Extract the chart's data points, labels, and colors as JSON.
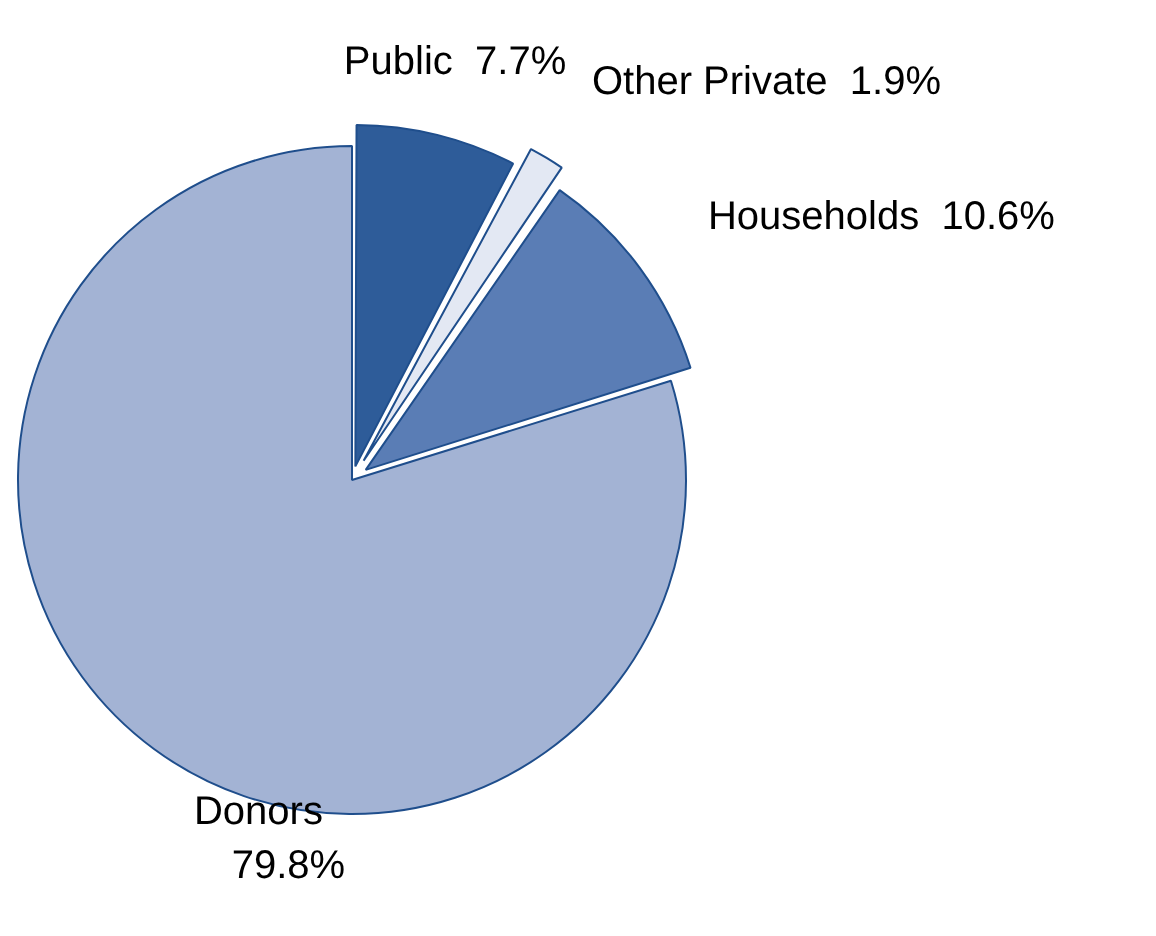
{
  "chart_data": {
    "type": "pie",
    "categories": [
      "Public",
      "Other Private",
      "Households",
      "Donors"
    ],
    "values": [
      7.7,
      1.9,
      10.6,
      79.8
    ],
    "value_labels": [
      "7.7%",
      "1.9%",
      "10.6%",
      "79.8%"
    ],
    "colors": [
      "#2e5c99",
      "#e3e8f3",
      "#5a7db5",
      "#a3b3d4"
    ],
    "legend": false
  }
}
